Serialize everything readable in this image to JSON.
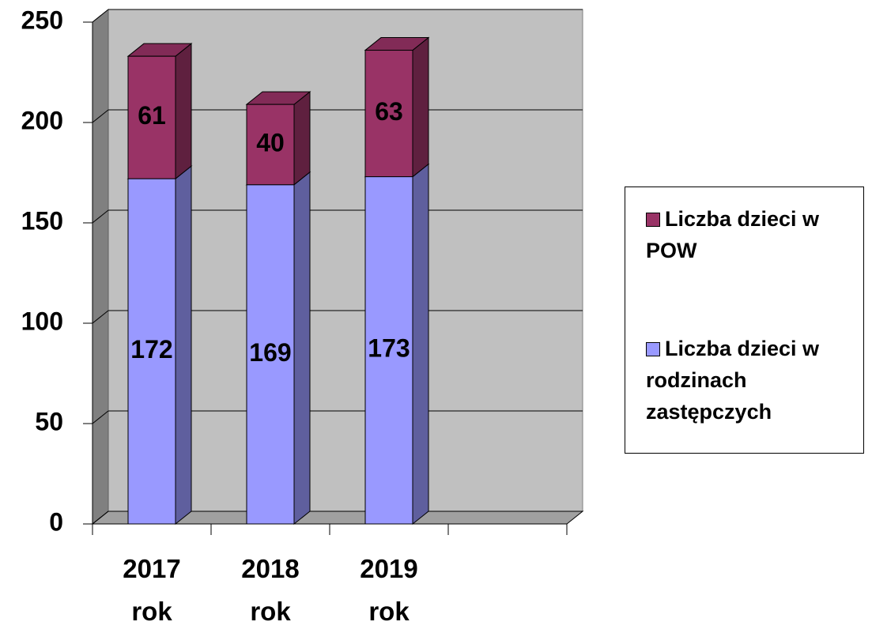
{
  "chart_data": {
    "type": "bar",
    "stacked": true,
    "categories": [
      "2017 rok",
      "2018 rok",
      "2019 rok",
      null
    ],
    "series": [
      {
        "name": "Liczba dzieci w rodzinach zastępczych",
        "color": "#9999ff",
        "values": [
          172,
          169,
          173,
          null
        ]
      },
      {
        "name": "Liczba dzieci w POW",
        "color": "#993366",
        "values": [
          61,
          40,
          63,
          null
        ]
      }
    ],
    "ylim": [
      0,
      250
    ],
    "yticks": [
      0,
      50,
      100,
      150,
      200,
      250
    ],
    "grid": true,
    "legend": "right"
  }
}
